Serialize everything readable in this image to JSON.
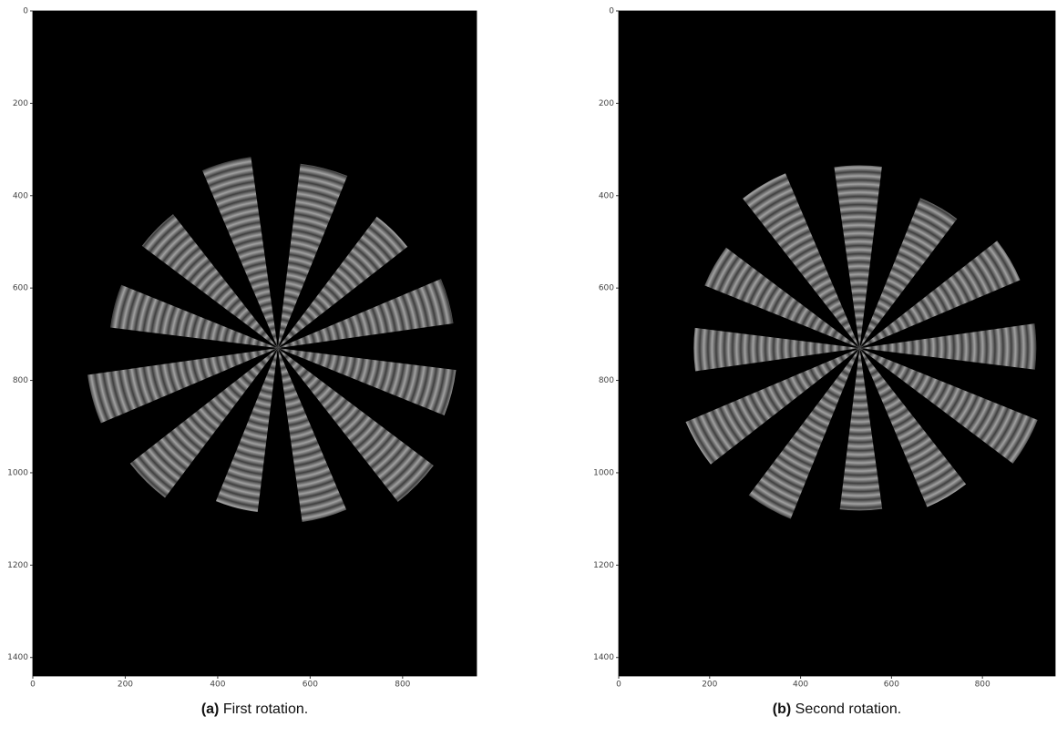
{
  "chart_data": [
    {
      "type": "image",
      "label": "(a)",
      "caption": "First rotation.",
      "xlim": [
        0,
        960
      ],
      "ylim": [
        1440,
        0
      ],
      "xticks": [
        0,
        200,
        400,
        600,
        800
      ],
      "yticks": [
        0,
        200,
        400,
        600,
        800,
        1000,
        1200,
        1400
      ]
    },
    {
      "type": "image",
      "label": "(b)",
      "caption": "Second rotation.",
      "xlim": [
        0,
        960
      ],
      "ylim": [
        1440,
        0
      ],
      "xticks": [
        0,
        200,
        400,
        600,
        800
      ],
      "yticks": [
        0,
        200,
        400,
        600,
        800,
        1000,
        1200,
        1400
      ]
    }
  ]
}
